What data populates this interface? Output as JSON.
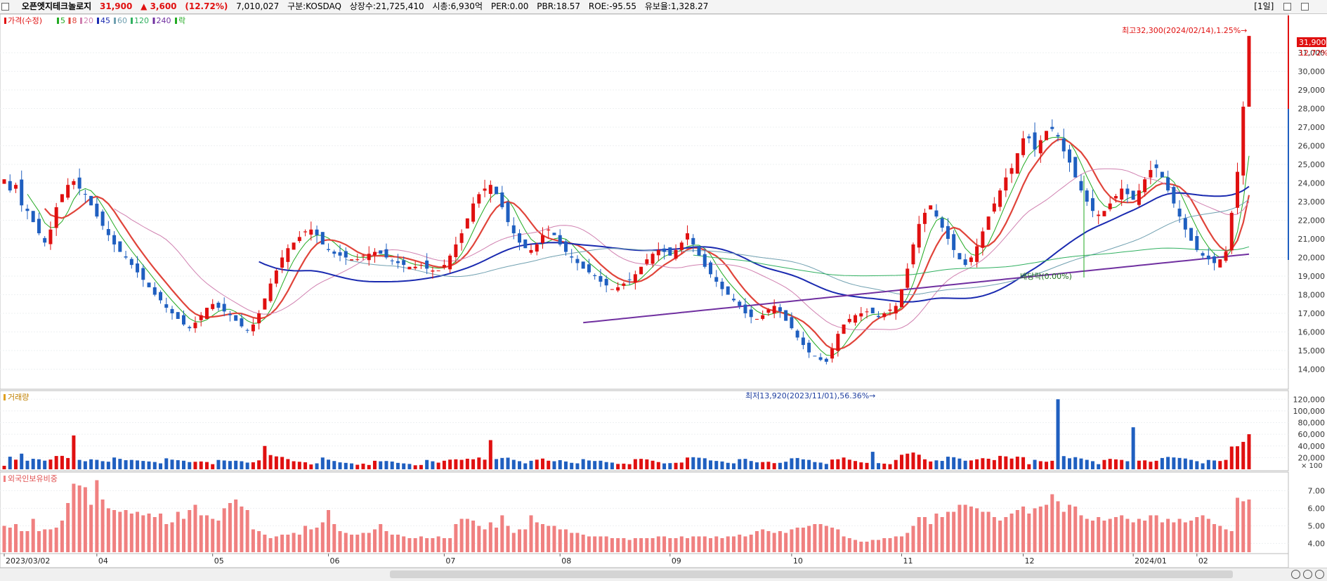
{
  "header": {
    "stock_name": "오픈엣지테크놀로지",
    "price": "31,900",
    "change": "▲ 3,600",
    "change_pct": "(12.72%)",
    "volume": "7,010,027",
    "market": "구분:KOSDAQ",
    "shares": "상장수:21,725,410",
    "market_cap": "시총:6,930억",
    "per": "PER:0.00",
    "pbr": "PBR:18.57",
    "roe": "ROE:-95.55",
    "float_rate": "유보율:1,328.27",
    "period": "[1일]"
  },
  "price_panel": {
    "legend": [
      {
        "label": "가격(수정)",
        "color": "#e01010"
      },
      {
        "label": "5",
        "color": "#22aa22"
      },
      {
        "label": "8",
        "color": "#e0443a"
      },
      {
        "label": "20",
        "color": "#d080b0"
      },
      {
        "label": "45",
        "color": "#1a2ab0"
      },
      {
        "label": "60",
        "color": "#70a0b0"
      },
      {
        "label": "120",
        "color": "#30b060"
      },
      {
        "label": "240",
        "color": "#7030a0"
      },
      {
        "label": "락",
        "color": "#22aa22"
      }
    ],
    "annotation_high": "최고32,300(2024/02/14),1.25%→",
    "annotation_low": "최저13,920(2023/11/01),56.36%→",
    "annotation_dividend": "배당락(0.00%)",
    "current_price_badge": "31,900",
    "current_change_badge": "12.72%"
  },
  "volume_panel": {
    "legend": "거래량",
    "unit": "× 100"
  },
  "foreign_panel": {
    "legend": "외국인보유비중"
  },
  "x_axis_labels": [
    "2023/03/02",
    "04",
    "05",
    "06",
    "07",
    "08",
    "09",
    "10",
    "11",
    "12",
    "2024/01",
    "02"
  ],
  "colors": {
    "up": "#e01010",
    "down": "#1f5fc0",
    "foreign_bar": "#f08080"
  },
  "chart_data": [
    {
      "type": "candlestick",
      "name": "price",
      "legend_label": "가격(수정)",
      "ylim": [
        13000,
        33000
      ],
      "yticks": [
        14000,
        15000,
        16000,
        17000,
        18000,
        19000,
        20000,
        21000,
        22000,
        23000,
        24000,
        25000,
        26000,
        27000,
        28000,
        29000,
        30000,
        31000
      ],
      "ytick_labels": [
        "14,000",
        "15,000",
        "16,000",
        "17,000",
        "18,000",
        "19,000",
        "20,000",
        "21,000",
        "22,000",
        "23,000",
        "24,000",
        "25,000",
        "26,000",
        "27,000",
        "28,000",
        "29,000",
        "30,000",
        "31,000"
      ],
      "closes": [
        24200,
        23600,
        23900,
        22800,
        22500,
        21900,
        21300,
        20800,
        21500,
        22700,
        23400,
        23900,
        24100,
        23700,
        23400,
        22800,
        22200,
        21700,
        21200,
        20700,
        20300,
        20000,
        19600,
        19200,
        18800,
        18400,
        18000,
        17700,
        17300,
        17000,
        16700,
        16400,
        16200,
        16500,
        16900,
        17300,
        17500,
        17300,
        17100,
        16900,
        16600,
        16300,
        16100,
        16400,
        17000,
        17800,
        18600,
        19300,
        20000,
        20500,
        20800,
        21100,
        21400,
        21500,
        21200,
        20700,
        20400,
        20200,
        20100,
        20000,
        19900,
        19900,
        20100,
        20200,
        20300,
        20200,
        20000,
        19800,
        19700,
        19600,
        19500,
        19500,
        19600,
        19400,
        19300,
        19300,
        19600,
        20100,
        20700,
        21300,
        22100,
        22900,
        23400,
        23700,
        23900,
        23400,
        22700,
        21900,
        21300,
        20800,
        20500,
        20400,
        20700,
        21200,
        21500,
        21200,
        20700,
        20300,
        20000,
        19700,
        19400,
        19200,
        19000,
        18700,
        18500,
        18300,
        18400,
        18600,
        18800,
        19100,
        19500,
        19900,
        20200,
        20400,
        20300,
        20100,
        20400,
        20800,
        21300,
        20700,
        20100,
        19500,
        19100,
        18700,
        18300,
        18000,
        17700,
        17400,
        17000,
        16800,
        16700,
        16900,
        17200,
        17400,
        17100,
        16600,
        16200,
        15700,
        15300,
        14900,
        14700,
        14500,
        14400,
        15100,
        15900,
        16400,
        16700,
        16900,
        17000,
        17100,
        17000,
        16800,
        17000,
        17200,
        17400,
        18300,
        19400,
        20700,
        21800,
        22400,
        22800,
        22200,
        21600,
        21000,
        20400,
        19900,
        19600,
        20000,
        20600,
        21400,
        22200,
        22900,
        23600,
        24300,
        24800,
        25600,
        26400,
        26400,
        25800,
        26300,
        26800,
        26900,
        26500,
        25700,
        25100,
        24300,
        23600,
        23000,
        22500,
        22300,
        22500,
        22900,
        23300,
        23700,
        23400,
        23100,
        23600,
        24200,
        24700,
        24800,
        24300,
        23600,
        22900,
        22200,
        21500,
        20900,
        20400,
        20100,
        19900,
        19700,
        19900,
        20300,
        22400,
        24600,
        28100,
        31900
      ],
      "current_price": 31900,
      "high_annotation": {
        "value": 32300,
        "date": "2024/02/14"
      },
      "low_annotation": {
        "value": 13920,
        "date": "2023/11/01"
      }
    },
    {
      "type": "bar",
      "name": "volume",
      "legend_label": "거래량",
      "unit": "× 100",
      "ylim": [
        0,
        130000
      ],
      "yticks": [
        20000,
        40000,
        60000,
        80000,
        100000,
        120000
      ],
      "ytick_labels": [
        "20,000",
        "40,000",
        "60,000",
        "80,000",
        "100,000",
        "120,000"
      ],
      "peak_values": [
        58000,
        40000,
        50000,
        30000,
        120000,
        72000,
        47000,
        112000
      ]
    },
    {
      "type": "bar",
      "name": "foreign_ownership",
      "legend_label": "외국인보유비중",
      "ylim": [
        3.5,
        7.9
      ],
      "yticks": [
        4.0,
        5.0,
        6.0,
        7.0
      ],
      "ytick_labels": [
        "4.00",
        "5.00",
        "6.00",
        "7.00"
      ],
      "values": [
        5.0,
        4.9,
        5.1,
        4.7,
        4.7,
        5.4,
        4.7,
        4.8,
        4.8,
        4.9,
        5.3,
        6.3,
        7.4,
        7.3,
        7.2,
        6.2,
        7.6,
        6.5,
        6.0,
        5.9,
        5.8,
        5.9,
        5.7,
        5.8,
        5.6,
        5.7,
        5.5,
        5.7,
        5.1,
        5.2,
        5.8,
        5.4,
        5.9,
        6.2,
        5.6,
        5.6,
        5.4,
        5.3,
        6.0,
        6.3,
        6.5,
        6.1,
        5.9,
        4.8,
        4.7,
        4.5,
        4.3,
        4.4,
        4.5,
        4.5,
        4.6,
        4.5,
        5.0,
        4.8,
        4.9,
        5.2,
        5.9,
        5.1,
        4.7,
        4.6,
        4.5,
        4.5,
        4.6,
        4.6,
        4.8,
        5.1,
        4.7,
        4.5,
        4.5,
        4.4,
        4.3,
        4.3,
        4.4,
        4.3,
        4.3,
        4.4,
        4.3,
        4.3,
        5.1,
        5.4,
        5.4,
        5.3,
        5.0,
        4.8,
        5.2,
        4.9,
        5.6,
        5.0,
        4.6,
        4.8,
        4.8,
        5.6,
        5.2,
        5.1,
        5.0,
        5.0,
        4.8,
        4.8,
        4.6,
        4.6,
        4.5,
        4.4,
        4.4,
        4.4,
        4.4,
        4.3,
        4.3,
        4.3,
        4.2,
        4.3,
        4.3,
        4.3,
        4.3,
        4.4,
        4.4,
        4.3,
        4.3,
        4.4,
        4.3,
        4.4,
        4.4,
        4.4,
        4.3,
        4.4,
        4.3,
        4.4,
        4.4,
        4.5,
        4.4,
        4.5,
        4.7,
        4.8,
        4.7,
        4.6,
        4.7,
        4.6,
        4.8,
        4.9,
        4.9,
        5.0,
        5.1,
        5.1,
        5.0,
        4.9,
        4.8,
        4.4,
        4.3,
        4.2,
        4.1,
        4.1,
        4.2,
        4.2,
        4.3,
        4.3,
        4.4,
        4.4,
        4.6,
        5.0,
        5.5,
        5.5,
        5.1,
        5.7,
        5.5,
        5.8,
        5.8,
        6.2,
        6.2,
        6.1,
        6.0,
        5.8,
        5.8,
        5.5,
        5.3,
        5.5,
        5.7,
        5.9,
        6.1,
        5.7,
        6.0,
        6.1,
        6.2,
        6.8,
        6.4,
        5.8,
        6.2,
        6.1,
        5.6,
        5.4,
        5.3,
        5.5,
        5.3,
        5.4,
        5.5,
        5.6,
        5.4,
        5.2,
        5.4,
        5.3,
        5.6,
        5.6,
        5.2,
        5.4,
        5.2,
        5.4,
        5.2,
        5.3,
        5.5,
        5.6,
        5.4,
        5.1,
        5.0,
        4.8,
        4.7,
        6.6,
        6.4,
        6.5
      ]
    }
  ]
}
